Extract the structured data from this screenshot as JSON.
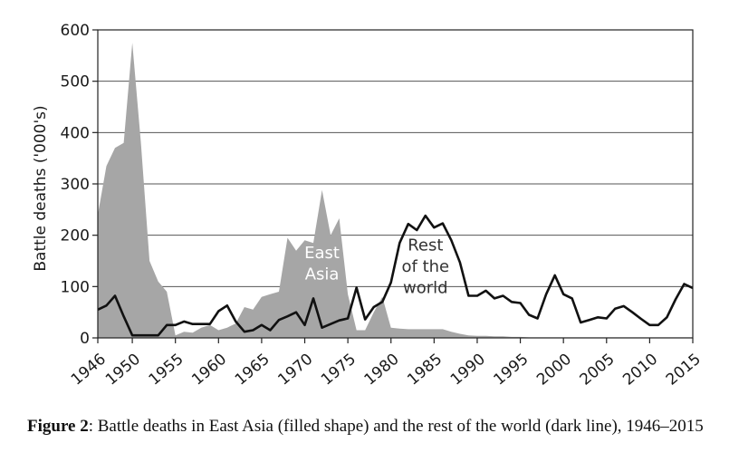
{
  "chart_data": {
    "type": "area",
    "ylabel": "Battle deaths ('000's)",
    "ylim": [
      0,
      600
    ],
    "yticks": [
      0,
      100,
      200,
      300,
      400,
      500,
      600
    ],
    "xlim": [
      1946,
      2015
    ],
    "xticks": [
      1946,
      1950,
      1955,
      1960,
      1965,
      1970,
      1975,
      1980,
      1985,
      1990,
      1995,
      2000,
      2005,
      2010,
      2015
    ],
    "grid": "horizontal",
    "colors": {
      "east_asia_fill": "#a6a6a6",
      "rest_line": "#111111",
      "grid": "#555555"
    },
    "x": [
      1946,
      1947,
      1948,
      1949,
      1950,
      1951,
      1952,
      1953,
      1954,
      1955,
      1956,
      1957,
      1958,
      1959,
      1960,
      1961,
      1962,
      1963,
      1964,
      1965,
      1966,
      1967,
      1968,
      1969,
      1970,
      1971,
      1972,
      1973,
      1974,
      1975,
      1976,
      1977,
      1978,
      1979,
      1980,
      1981,
      1982,
      1983,
      1984,
      1985,
      1986,
      1987,
      1988,
      1989,
      1990,
      1991,
      1992,
      1993,
      1994,
      1995,
      1996,
      1997,
      1998,
      1999,
      2000,
      2001,
      2002,
      2003,
      2004,
      2005,
      2006,
      2007,
      2008,
      2009,
      2010,
      2011,
      2012,
      2013,
      2014,
      2015
    ],
    "series": [
      {
        "key": "east_asia",
        "style": "filled",
        "values": [
          240,
          335,
          370,
          380,
          575,
          380,
          150,
          110,
          90,
          5,
          12,
          10,
          20,
          25,
          15,
          20,
          28,
          60,
          55,
          80,
          85,
          90,
          195,
          170,
          190,
          185,
          288,
          200,
          233,
          85,
          15,
          15,
          50,
          80,
          20,
          18,
          17,
          17,
          17,
          17,
          17,
          12,
          8,
          5,
          4,
          4,
          3,
          3,
          2,
          2,
          1,
          1,
          1,
          1,
          1,
          1,
          1,
          1,
          1,
          1,
          1,
          1,
          1,
          1,
          1,
          1,
          1,
          1,
          1,
          1
        ]
      },
      {
        "key": "rest_of_world",
        "style": "line",
        "values": [
          55,
          63,
          82,
          42,
          5,
          5,
          5,
          5,
          25,
          25,
          32,
          27,
          27,
          27,
          52,
          63,
          32,
          12,
          15,
          25,
          15,
          35,
          42,
          50,
          25,
          77,
          20,
          27,
          34,
          38,
          98,
          36,
          60,
          70,
          108,
          185,
          222,
          210,
          238,
          215,
          223,
          190,
          147,
          82,
          82,
          92,
          77,
          82,
          70,
          68,
          45,
          38,
          85,
          122,
          85,
          77,
          30,
          35,
          40,
          38,
          57,
          62,
          50,
          37,
          25,
          25,
          40,
          75,
          105,
          97
        ]
      }
    ],
    "annotations": [
      {
        "key": "east_asia_label",
        "lines": [
          "East",
          "Asia"
        ]
      },
      {
        "key": "rest_label",
        "lines": [
          "Rest",
          "of the",
          "world"
        ]
      }
    ]
  },
  "caption": {
    "bold": "Figure 2",
    "text": ": Battle deaths in East Asia (filled shape) and the rest of the world (dark line), 1946–2015"
  }
}
